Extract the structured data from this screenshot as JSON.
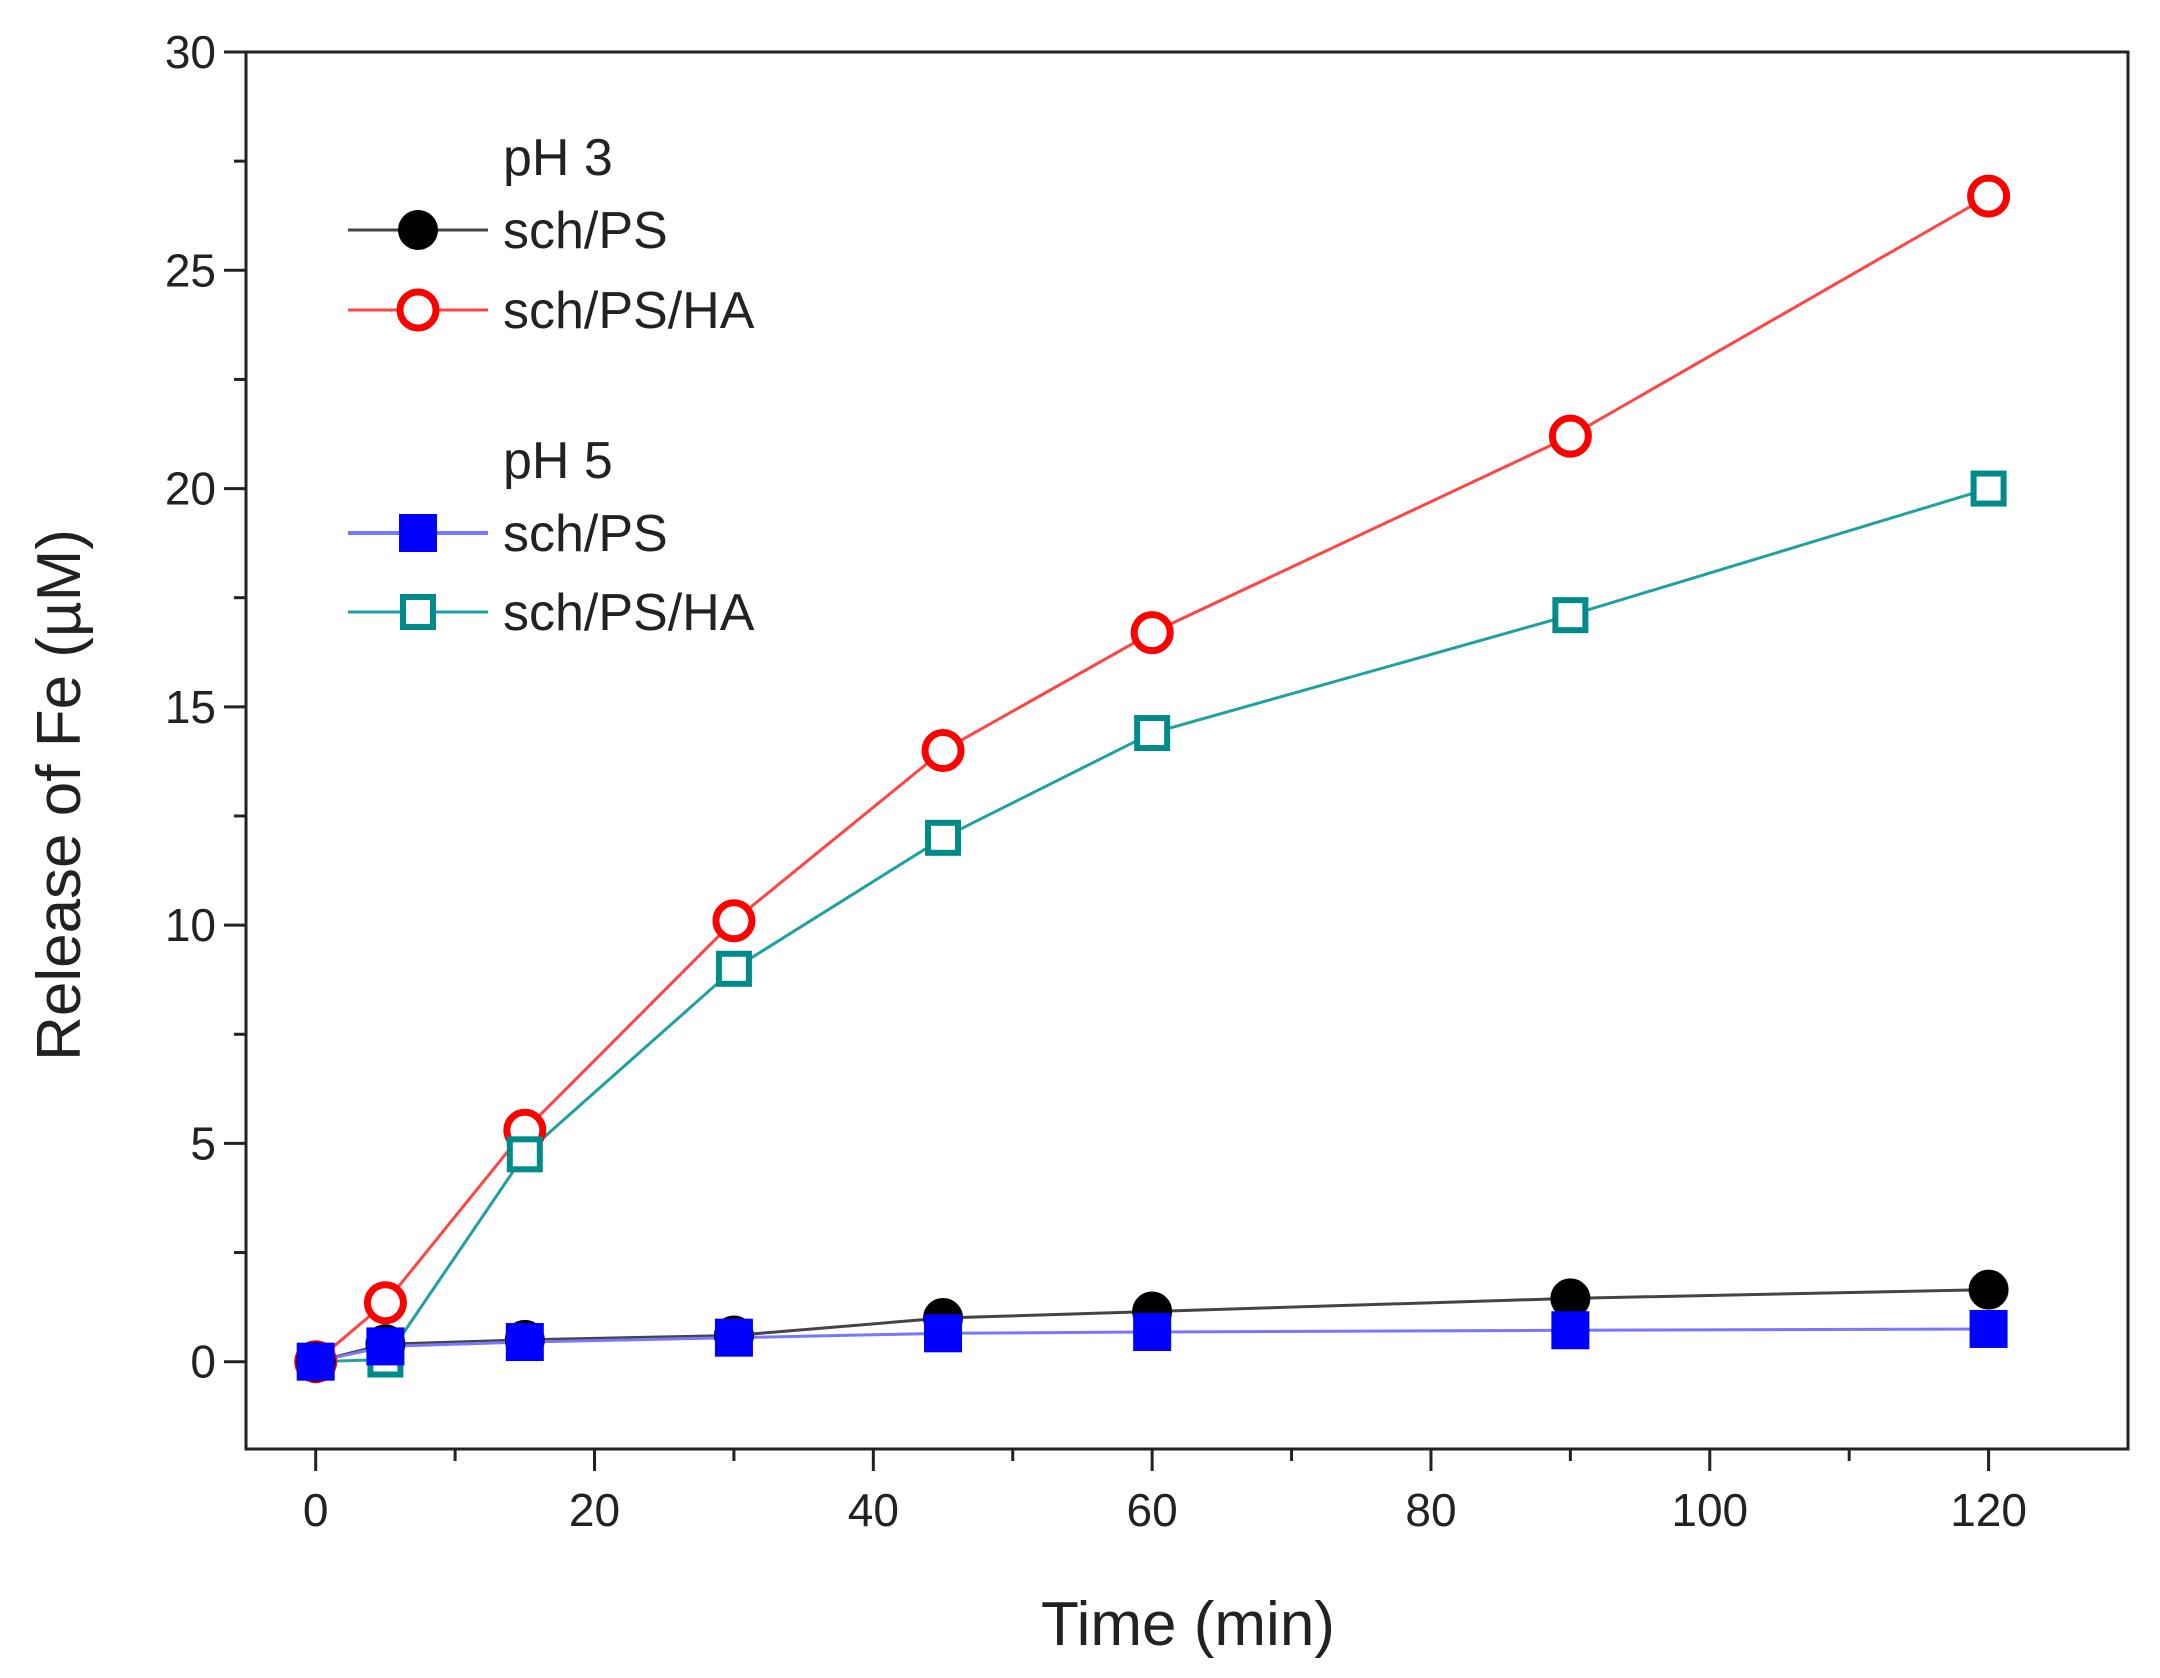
{
  "chart_data": {
    "type": "line",
    "title": "",
    "xlabel": "Time (min)",
    "ylabel": "Release of Fe (µM)",
    "xlim": [
      -5,
      130
    ],
    "ylim": [
      -2,
      30
    ],
    "xticks": [
      0,
      20,
      40,
      60,
      80,
      100,
      120
    ],
    "yticks": [
      0,
      5,
      10,
      15,
      20,
      25,
      30
    ],
    "x": [
      0,
      5,
      15,
      30,
      45,
      60,
      90,
      120
    ],
    "legend_groups": [
      {
        "title": "pH 3",
        "series": [
          0,
          1
        ]
      },
      {
        "title": "pH 5",
        "series": [
          2,
          3
        ]
      }
    ],
    "series": [
      {
        "name": "sch/PS",
        "group": "pH 3",
        "color": "#000000",
        "line_color": "#444444",
        "marker": "circle",
        "filled": true,
        "values": [
          0,
          0.4,
          0.5,
          0.6,
          1.0,
          1.15,
          1.45,
          1.65
        ]
      },
      {
        "name": "sch/PS/HA",
        "group": "pH 3",
        "color": "#ff0000",
        "line_color": "#ff4444",
        "marker": "circle",
        "filled": false,
        "values": [
          0,
          1.35,
          5.3,
          10.1,
          14.0,
          16.7,
          21.2,
          26.7
        ]
      },
      {
        "name": "sch/PS",
        "group": "pH 5",
        "color": "#0000ff",
        "line_color": "#7777ff",
        "marker": "square",
        "filled": true,
        "values": [
          0,
          0.35,
          0.45,
          0.55,
          0.65,
          0.68,
          0.72,
          0.75
        ]
      },
      {
        "name": "sch/PS/HA",
        "group": "pH 5",
        "color": "#008b8b",
        "line_color": "#20a0a0",
        "marker": "square",
        "filled": false,
        "values": [
          0,
          0.05,
          4.75,
          9.0,
          12.0,
          14.4,
          17.1,
          20.0
        ]
      }
    ]
  }
}
